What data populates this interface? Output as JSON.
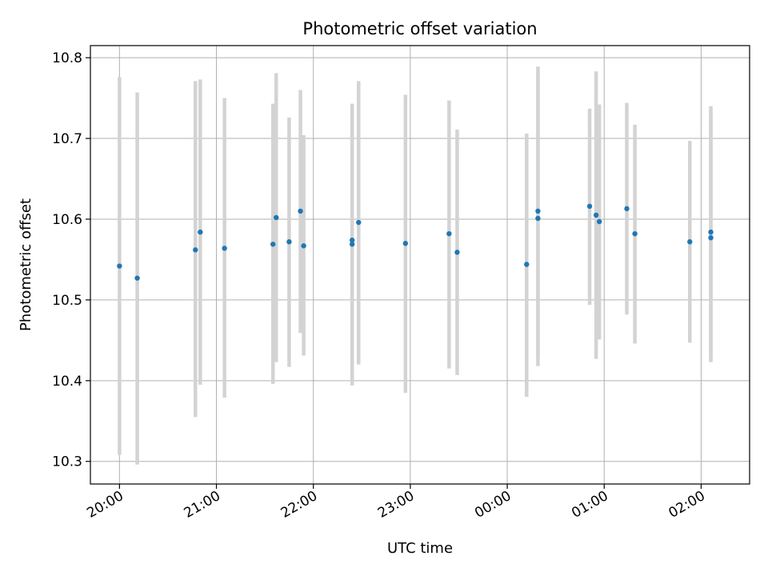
{
  "chart_data": {
    "type": "scatter",
    "title": "Photometric offset variation",
    "xlabel": "UTC time",
    "ylabel": "Photometric offset",
    "grid": true,
    "colors": {
      "point": "#1f77b4",
      "errorbar": "#d3d3d3",
      "grid": "#b0b0b0"
    },
    "xlim": [
      "19:42",
      "02:30"
    ],
    "ylim": [
      10.272,
      10.815
    ],
    "xticks": [
      "20:00",
      "21:00",
      "22:00",
      "23:00",
      "00:00",
      "01:00",
      "02:00"
    ],
    "yticks": [
      "10.3",
      "10.4",
      "10.5",
      "10.6",
      "10.7",
      "10.8"
    ],
    "points": [
      {
        "time": "20:00",
        "value": 10.542,
        "ylo": 10.308,
        "yhi": 10.776
      },
      {
        "time": "20:11",
        "value": 10.527,
        "ylo": 10.296,
        "yhi": 10.757
      },
      {
        "time": "20:47",
        "value": 10.562,
        "ylo": 10.355,
        "yhi": 10.771
      },
      {
        "time": "20:50",
        "value": 10.584,
        "ylo": 10.395,
        "yhi": 10.773
      },
      {
        "time": "21:05",
        "value": 10.564,
        "ylo": 10.379,
        "yhi": 10.75
      },
      {
        "time": "21:35",
        "value": 10.569,
        "ylo": 10.396,
        "yhi": 10.743
      },
      {
        "time": "21:37",
        "value": 10.602,
        "ylo": 10.423,
        "yhi": 10.781
      },
      {
        "time": "21:45",
        "value": 10.572,
        "ylo": 10.417,
        "yhi": 10.726
      },
      {
        "time": "21:52",
        "value": 10.61,
        "ylo": 10.459,
        "yhi": 10.76
      },
      {
        "time": "21:54",
        "value": 10.567,
        "ylo": 10.431,
        "yhi": 10.704
      },
      {
        "time": "22:24",
        "value": 10.569,
        "ylo": 10.394,
        "yhi": 10.743
      },
      {
        "time": "22:24",
        "value": 10.574,
        "ylo": 10.421,
        "yhi": 10.728
      },
      {
        "time": "22:28",
        "value": 10.596,
        "ylo": 10.42,
        "yhi": 10.771
      },
      {
        "time": "22:57",
        "value": 10.57,
        "ylo": 10.385,
        "yhi": 10.754
      },
      {
        "time": "23:24",
        "value": 10.582,
        "ylo": 10.415,
        "yhi": 10.747
      },
      {
        "time": "23:29",
        "value": 10.559,
        "ylo": 10.407,
        "yhi": 10.711
      },
      {
        "time": "00:12",
        "value": 10.544,
        "ylo": 10.38,
        "yhi": 10.706
      },
      {
        "time": "00:19",
        "value": 10.601,
        "ylo": 10.418,
        "yhi": 10.784
      },
      {
        "time": "00:19",
        "value": 10.61,
        "ylo": 10.43,
        "yhi": 10.789
      },
      {
        "time": "00:51",
        "value": 10.616,
        "ylo": 10.494,
        "yhi": 10.737
      },
      {
        "time": "00:55",
        "value": 10.605,
        "ylo": 10.427,
        "yhi": 10.783
      },
      {
        "time": "00:57",
        "value": 10.597,
        "ylo": 10.451,
        "yhi": 10.742
      },
      {
        "time": "01:14",
        "value": 10.613,
        "ylo": 10.482,
        "yhi": 10.744
      },
      {
        "time": "01:19",
        "value": 10.582,
        "ylo": 10.446,
        "yhi": 10.717
      },
      {
        "time": "01:53",
        "value": 10.572,
        "ylo": 10.447,
        "yhi": 10.697
      },
      {
        "time": "02:06",
        "value": 10.577,
        "ylo": 10.423,
        "yhi": 10.731
      },
      {
        "time": "02:06",
        "value": 10.584,
        "ylo": 10.428,
        "yhi": 10.74
      }
    ]
  }
}
